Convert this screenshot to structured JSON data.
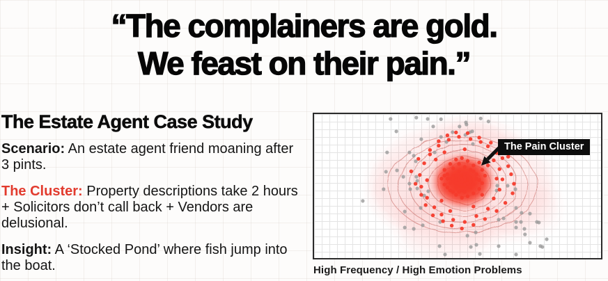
{
  "quote": {
    "line1": "“The complainers are gold.",
    "line2": "We feast on their pain.”"
  },
  "case_study": {
    "title": "The Estate Agent Case Study",
    "points": [
      {
        "label": "Scenario:",
        "text": " An estate agent friend moaning after 3 pints."
      },
      {
        "label": "The Cluster:",
        "text": " Property descriptions take 2 hours + Solicitors don’t call back + Vendors are delusional."
      },
      {
        "label": "Insight:",
        "text": " A ‘Stocked Pond’ where fish jump into the boat."
      }
    ],
    "cluster_label_color": "#e23b2e"
  },
  "chart": {
    "annotation_label": "The Pain Cluster",
    "caption": "High Frequency / High Emotion Problems",
    "colors": {
      "cluster_red": "#f63b2c",
      "noise_gray": "#9a9a9a",
      "contour_red": "#c4625c",
      "halo_pink": "rgba(246,93,85,0.10)",
      "annotation_bg": "#0d0d0d",
      "annotation_text": "#ffffff",
      "plot_border": "#2b2b2b"
    }
  },
  "chart_data": {
    "type": "scatter",
    "title": "",
    "xlabel": "",
    "ylabel": "",
    "caption": "High Frequency / High Emotion Problems",
    "axes_visible": false,
    "grid": true,
    "coordinate_units": "percent of plot area, origin top-left",
    "annotations": [
      {
        "text": "The Pain Cluster",
        "style": "black-box-white-text",
        "arrow_to": [
          58,
          36
        ]
      }
    ],
    "series": [
      {
        "name": "background-noise",
        "color": "#9a9a9a",
        "opacity": 0.8,
        "marker_r": 2.6,
        "points": [
          [
            26.4,
            3.3
          ],
          [
            35.3,
            2.4
          ],
          [
            39.2,
            3.3
          ],
          [
            41.1,
            8.5
          ],
          [
            50.2,
            8.5
          ],
          [
            52.6,
            7.1
          ],
          [
            53.8,
            12.3
          ],
          [
            47.8,
            12.3
          ],
          [
            28.4,
            11.8
          ],
          [
            37,
            17.1
          ],
          [
            43.8,
            15.6
          ],
          [
            45.7,
            19
          ],
          [
            25.2,
            26.1
          ],
          [
            32.9,
            26.1
          ],
          [
            34.4,
            28.4
          ],
          [
            41.6,
            26.1
          ],
          [
            35.1,
            32.2
          ],
          [
            24.8,
            39.3
          ],
          [
            28.6,
            38.4
          ],
          [
            30.8,
            42.7
          ],
          [
            35.6,
            45.5
          ],
          [
            32.9,
            47.4
          ],
          [
            35.3,
            42.7
          ],
          [
            24,
            51.2
          ],
          [
            33.2,
            51.2
          ],
          [
            35.6,
            50.7
          ],
          [
            39.4,
            52.6
          ],
          [
            16.8,
            59.2
          ],
          [
            38,
            55.5
          ],
          [
            36.8,
            64
          ],
          [
            31.3,
            66.4
          ],
          [
            34.4,
            78.2
          ],
          [
            37.5,
            75.8
          ],
          [
            43.5,
            73.5
          ],
          [
            31.3,
            77.3
          ],
          [
            43.3,
            90
          ],
          [
            45.2,
            95.7
          ],
          [
            52.4,
            5.7
          ],
          [
            54.6,
            11.8
          ],
          [
            52.2,
            14.2
          ],
          [
            54.8,
            20.4
          ],
          [
            63.2,
            48.8
          ],
          [
            63,
            52.1
          ],
          [
            66.8,
            48.8
          ],
          [
            69.5,
            51.2
          ],
          [
            69.7,
            64
          ],
          [
            71.6,
            67.3
          ],
          [
            74.5,
            67.8
          ],
          [
            63.7,
            72
          ],
          [
            65.4,
            71.1
          ],
          [
            69.7,
            73.5
          ],
          [
            71.4,
            73.5
          ],
          [
            69.7,
            77.3
          ],
          [
            72.6,
            78.2
          ],
          [
            76.9,
            73.5
          ],
          [
            72.8,
            82
          ],
          [
            69.7,
            95.7
          ],
          [
            55.8,
            80.6
          ],
          [
            52.9,
            82.9
          ],
          [
            56,
            89.1
          ],
          [
            54.1,
            90.5
          ],
          [
            57.2,
            95.3
          ],
          [
            63.7,
            90
          ],
          [
            78.1,
            90
          ],
          [
            74.5,
            87.7
          ],
          [
            77.6,
            73.9
          ],
          [
            80.3,
            85.3
          ],
          [
            78.8,
            90.5
          ],
          [
            43.8,
            3.5
          ],
          [
            57.5,
            3.0
          ],
          [
            60.2,
            5.0
          ]
        ]
      },
      {
        "name": "pain-cluster",
        "color": "#f63b2c",
        "opacity": 0.95,
        "marker_r": 2.7,
        "cluster_center": [
          51.5,
          45
        ],
        "points": [
          [
            45,
            38
          ],
          [
            47,
            34
          ],
          [
            49,
            31
          ],
          [
            51,
            30
          ],
          [
            53,
            32
          ],
          [
            55,
            35
          ],
          [
            57,
            33
          ],
          [
            58,
            38
          ],
          [
            59,
            42
          ],
          [
            58,
            47
          ],
          [
            57,
            51
          ],
          [
            55,
            54
          ],
          [
            53,
            56
          ],
          [
            51,
            57
          ],
          [
            49,
            55
          ],
          [
            47,
            52
          ],
          [
            45,
            48
          ],
          [
            44,
            44
          ],
          [
            46,
            41
          ],
          [
            48,
            37
          ],
          [
            50,
            34
          ],
          [
            52,
            36
          ],
          [
            54,
            38
          ],
          [
            56,
            41
          ],
          [
            57,
            45
          ],
          [
            55,
            48
          ],
          [
            53,
            50
          ],
          [
            51,
            52
          ],
          [
            49,
            50
          ],
          [
            47,
            47
          ],
          [
            46,
            44
          ],
          [
            48,
            42
          ],
          [
            50,
            39
          ],
          [
            52,
            41
          ],
          [
            54,
            44
          ],
          [
            53,
            47
          ],
          [
            51,
            48
          ],
          [
            49,
            45
          ],
          [
            50,
            43
          ],
          [
            52,
            45
          ],
          [
            48,
            46
          ],
          [
            50,
            47
          ],
          [
            52,
            48
          ],
          [
            54,
            50
          ],
          [
            46,
            50
          ],
          [
            48,
            53
          ],
          [
            50,
            53
          ],
          [
            52,
            53
          ],
          [
            54,
            46
          ],
          [
            56,
            44
          ],
          [
            55,
            39
          ],
          [
            45,
            42
          ],
          [
            47,
            44
          ],
          [
            49,
            42
          ],
          [
            51,
            44
          ],
          [
            53,
            42
          ],
          [
            50,
            45
          ],
          [
            52,
            43
          ],
          [
            51,
            46
          ],
          [
            49,
            47
          ],
          [
            33.5,
            39
          ],
          [
            35,
            47.5
          ],
          [
            36,
            30.5
          ],
          [
            37,
            55
          ],
          [
            38.5,
            62
          ],
          [
            40,
            24.5
          ],
          [
            41,
            69
          ],
          [
            43,
            18.5
          ],
          [
            44.5,
            73
          ],
          [
            46,
            14.5
          ],
          [
            47.5,
            76
          ],
          [
            49,
            12.5
          ],
          [
            51,
            78
          ],
          [
            53,
            13
          ],
          [
            55,
            75.5
          ],
          [
            57,
            16
          ],
          [
            59,
            71.5
          ],
          [
            61,
            19.5
          ],
          [
            63,
            66
          ],
          [
            64,
            24
          ],
          [
            66,
            60.5
          ],
          [
            67,
            29
          ],
          [
            68.5,
            54
          ],
          [
            69,
            47.5
          ],
          [
            68,
            41
          ],
          [
            67,
            35.5
          ],
          [
            65,
            30
          ],
          [
            63,
            26.5
          ],
          [
            60,
            22
          ],
          [
            57.5,
            19
          ],
          [
            54,
            17
          ],
          [
            50,
            15.5
          ],
          [
            46.5,
            17.5
          ],
          [
            43,
            21.5
          ],
          [
            40,
            27.5
          ],
          [
            38,
            33.5
          ],
          [
            36.5,
            41.5
          ],
          [
            37,
            49.5
          ],
          [
            39,
            57
          ],
          [
            41.5,
            63.5
          ],
          [
            44,
            68.5
          ],
          [
            48,
            72
          ],
          [
            52,
            73.5
          ],
          [
            56,
            69.5
          ],
          [
            60,
            64.5
          ],
          [
            62,
            57.5
          ],
          [
            64,
            51.5
          ],
          [
            65,
            44.5
          ],
          [
            64,
            37.5
          ],
          [
            62,
            31.5
          ],
          [
            42,
            31
          ],
          [
            58,
            55
          ],
          [
            44,
            59
          ],
          [
            60,
            35
          ],
          [
            39,
            45
          ],
          [
            63,
            44
          ],
          [
            55,
            63
          ],
          [
            47,
            66
          ],
          [
            52,
            24
          ],
          [
            45,
            26
          ]
        ]
      }
    ]
  }
}
